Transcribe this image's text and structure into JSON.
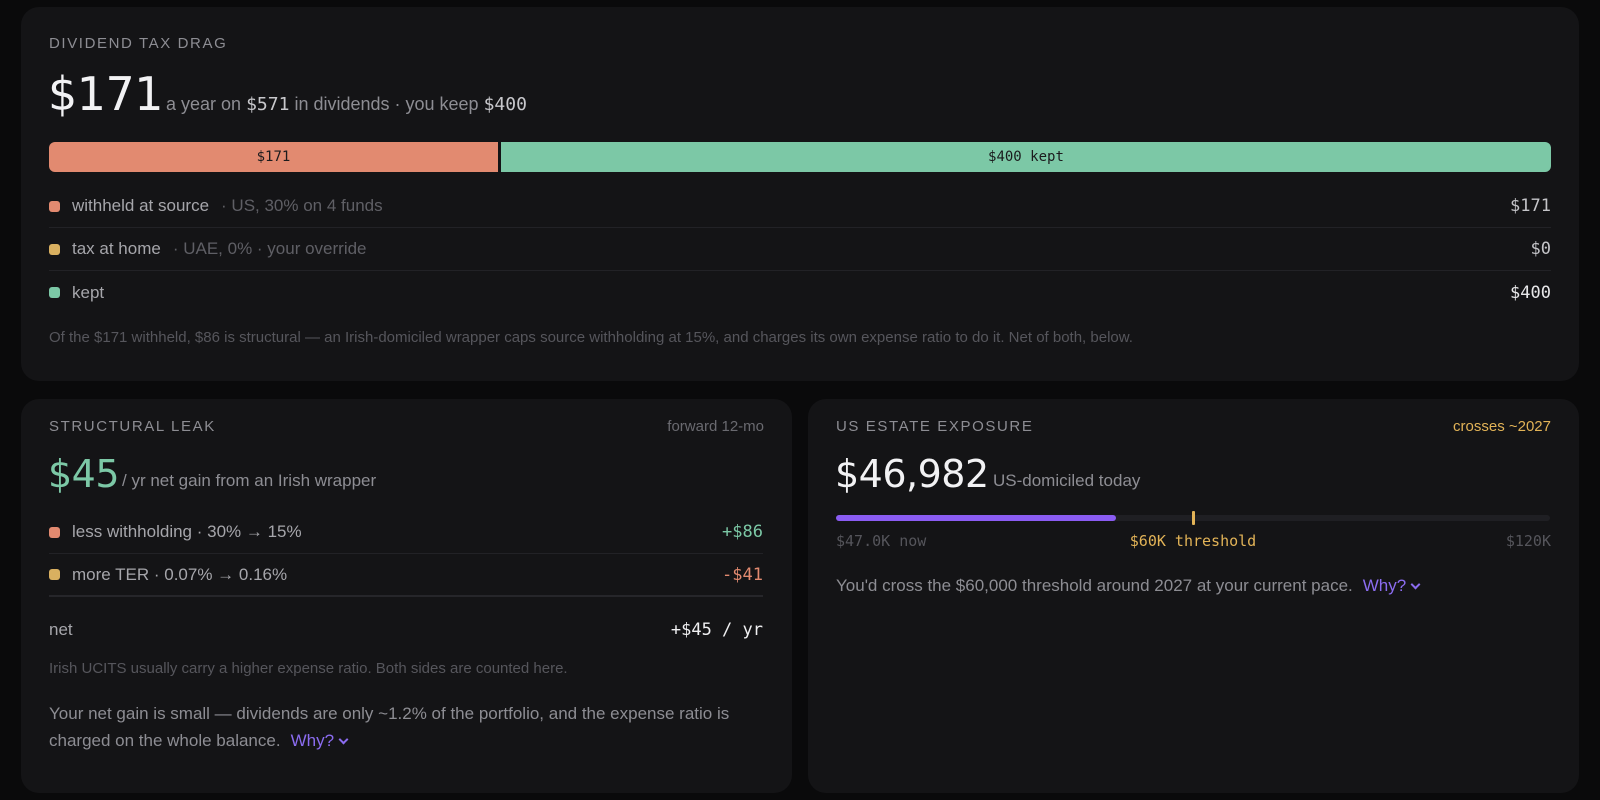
{
  "colors": {
    "withheld": "#e28a70",
    "home_tax": "#d9b060",
    "kept": "#7cc8a6",
    "accent": "#8b6cf0",
    "warning": "#e2b357",
    "positive": "#7cc8a6",
    "negative": "#e28a70"
  },
  "tax_drag": {
    "title": "DIVIDEND TAX DRAG",
    "amount": "$171",
    "summary_1": "a year on",
    "summary_dividends": "$571",
    "summary_2": "in dividends · you keep",
    "summary_kept": "$400",
    "bar": {
      "withheld_label": "$171",
      "kept_label": "$400 kept",
      "withheld_value": 171,
      "kept_value": 400
    },
    "rows": [
      {
        "label": "withheld at source",
        "note": "· US, 30% on 4 funds",
        "value": "$171",
        "icon": "withheld-square-icon"
      },
      {
        "label": "tax at home",
        "note": "· UAE, 0% · your override",
        "value": "$0",
        "icon": "home-tax-square-icon"
      },
      {
        "label": "kept",
        "note": "",
        "value": "$400",
        "icon": "kept-square-icon"
      }
    ],
    "footnote": "Of the $171 withheld, $86 is structural — an Irish-domiciled wrapper caps source withholding at 15%, and charges its own expense ratio to do it. Net of both, below."
  },
  "structural_leak": {
    "title": "STRUCTURAL LEAK",
    "horizon": "forward 12-mo",
    "amount": "$45",
    "summary": "/ yr net gain from an Irish wrapper",
    "rows": [
      {
        "label": "less withholding · 30% → 15%",
        "value": "+$86"
      },
      {
        "label": "more TER · 0.07% → 0.16%",
        "value": "-$41"
      }
    ],
    "net_label": "net",
    "net_value": "+$45 / yr",
    "footnote": "Irish UCITS usually carry a higher expense ratio. Both sides are counted here.",
    "explanation": "Your net gain is small — dividends are only ~1.2% of the portfolio, and the expense ratio is charged on the whole balance.",
    "why_label": "Why?"
  },
  "estate": {
    "title": "US ESTATE EXPOSURE",
    "crosses": "crosses ~2027",
    "amount": "$46,982",
    "summary": "US-domiciled today",
    "progress": {
      "now_fraction": 0.3915,
      "threshold_fraction": 0.5,
      "now_label": "$47.0K now",
      "threshold_label": "$60K threshold",
      "max_label": "$120K"
    },
    "explanation": "You'd cross the $60,000 threshold around 2027 at your current pace.",
    "why_label": "Why?"
  }
}
